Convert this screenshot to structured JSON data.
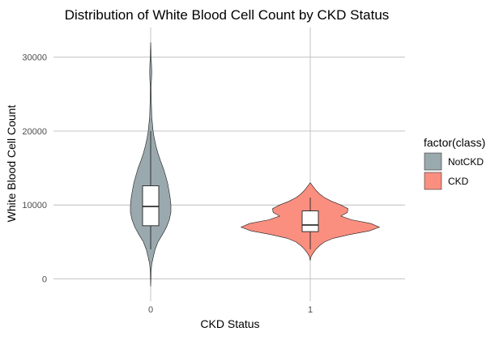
{
  "chart_data": {
    "type": "violin",
    "title": "Distribution of White Blood Cell Count by CKD Status",
    "xlabel": "CKD Status",
    "ylabel": "White Blood Cell Count",
    "x_ticks": [
      "0",
      "1"
    ],
    "y_ticks": [
      0,
      10000,
      20000,
      30000
    ],
    "ylim": [
      -3000,
      34000
    ],
    "grid": true,
    "legend": {
      "title": "factor(class)",
      "position": "right",
      "entries": [
        {
          "label": "NotCKD",
          "color": "#9aa9ad"
        },
        {
          "label": "CKD",
          "color": "#fa8f80"
        }
      ]
    },
    "groups": [
      {
        "x": "0",
        "legend_label": "NotCKD",
        "color": "#9aa9ad",
        "violin": {
          "y_min": -1000,
          "y_max": 32000,
          "profile": [
            [
              -1000,
              0.0
            ],
            [
              0,
              0.01
            ],
            [
              1000,
              0.02
            ],
            [
              2000,
              0.05
            ],
            [
              3000,
              0.13
            ],
            [
              4000,
              0.22
            ],
            [
              5000,
              0.36
            ],
            [
              6000,
              0.58
            ],
            [
              7000,
              0.78
            ],
            [
              8000,
              0.92
            ],
            [
              9000,
              1.0
            ],
            [
              10000,
              1.0
            ],
            [
              11000,
              0.96
            ],
            [
              12000,
              0.9
            ],
            [
              13000,
              0.83
            ],
            [
              14000,
              0.73
            ],
            [
              15000,
              0.62
            ],
            [
              16000,
              0.48
            ],
            [
              17000,
              0.36
            ],
            [
              18000,
              0.26
            ],
            [
              19000,
              0.18
            ],
            [
              20000,
              0.12
            ],
            [
              22000,
              0.05
            ],
            [
              24000,
              0.03
            ],
            [
              26000,
              0.02
            ],
            [
              27000,
              0.04
            ],
            [
              28000,
              0.05
            ],
            [
              29000,
              0.04
            ],
            [
              30000,
              0.02
            ],
            [
              32000,
              0.0
            ]
          ]
        },
        "box": {
          "q1": 7200,
          "median": 9800,
          "q3": 12600,
          "whisker_low": 4000,
          "whisker_high": 20000
        }
      },
      {
        "x": "1",
        "legend_label": "CKD",
        "color": "#fa8f80",
        "violin": {
          "y_min": 2500,
          "y_max": 13000,
          "profile": [
            [
              2500,
              0.0
            ],
            [
              3000,
              0.01
            ],
            [
              3500,
              0.04
            ],
            [
              4000,
              0.08
            ],
            [
              4500,
              0.13
            ],
            [
              5000,
              0.2
            ],
            [
              5500,
              0.32
            ],
            [
              6000,
              0.55
            ],
            [
              6500,
              0.83
            ],
            [
              7000,
              0.97
            ],
            [
              7500,
              0.85
            ],
            [
              8000,
              0.58
            ],
            [
              8500,
              0.43
            ],
            [
              9000,
              0.52
            ],
            [
              9500,
              0.53
            ],
            [
              10000,
              0.43
            ],
            [
              10500,
              0.3
            ],
            [
              11000,
              0.2
            ],
            [
              11500,
              0.13
            ],
            [
              12000,
              0.08
            ],
            [
              12500,
              0.04
            ],
            [
              13000,
              0.0
            ]
          ]
        },
        "box": {
          "q1": 6400,
          "median": 7300,
          "q3": 9200,
          "whisker_low": 4000,
          "whisker_high": 11000
        }
      }
    ]
  }
}
